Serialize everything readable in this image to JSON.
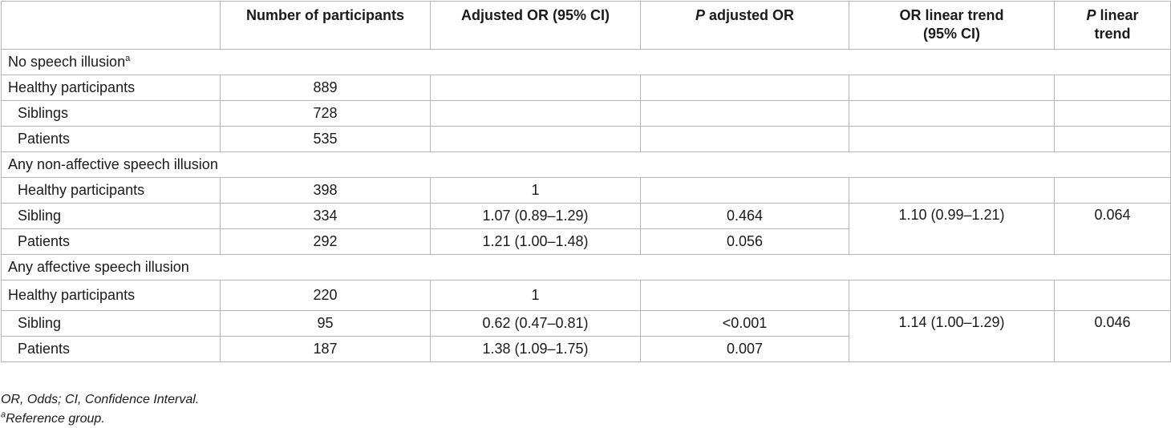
{
  "table": {
    "headers": {
      "group": "",
      "n": "Number of participants",
      "adj_or": "Adjusted OR (95% CI)",
      "p_adj_prefix": "P",
      "p_adj_rest": " adjusted OR",
      "or_trend_line1": "OR linear trend",
      "or_trend_line2": "(95% CI)",
      "p_trend_prefix": "P",
      "p_trend_rest": " linear",
      "p_trend_line2": "trend"
    },
    "sections": [
      {
        "title": "No speech illusion",
        "title_sup": "a",
        "rows": [
          {
            "name": "Healthy participants",
            "n": "889",
            "adj_or": "",
            "p_adj": "",
            "or_trend": "",
            "p_trend": ""
          },
          {
            "name": "Siblings",
            "n": "728",
            "adj_or": "",
            "p_adj": "",
            "or_trend": "",
            "p_trend": ""
          },
          {
            "name": "Patients",
            "n": "535",
            "adj_or": "",
            "p_adj": "",
            "or_trend": "",
            "p_trend": ""
          }
        ]
      },
      {
        "title": "Any non-affective speech illusion",
        "rows": [
          {
            "name": "Healthy participants",
            "n": "398",
            "adj_or": "1",
            "p_adj": ""
          },
          {
            "name": "Sibling",
            "n": "334",
            "adj_or": "1.07 (0.89–1.29)",
            "p_adj": "0.464"
          },
          {
            "name": "Patients",
            "n": "292",
            "adj_or": "1.21 (1.00–1.48)",
            "p_adj": "0.056"
          }
        ],
        "or_trend": "1.10 (0.99–1.21)",
        "p_trend": "0.064"
      },
      {
        "title": "Any affective speech illusion",
        "rows": [
          {
            "name": "Healthy participants",
            "n": "220",
            "adj_or": "1",
            "p_adj": ""
          },
          {
            "name": "Sibling",
            "n": "95",
            "adj_or": "0.62 (0.47–0.81)",
            "p_adj": "<0.001"
          },
          {
            "name": "Patients",
            "n": "187",
            "adj_or": "1.38 (1.09–1.75)",
            "p_adj": "0.007"
          }
        ],
        "or_trend": "1.14 (1.00–1.29)",
        "p_trend": "0.046"
      }
    ]
  },
  "footnotes": {
    "abbrev": "OR, Odds; CI, Confidence Interval.",
    "ref_sup": "a",
    "ref_text": "Reference group."
  }
}
